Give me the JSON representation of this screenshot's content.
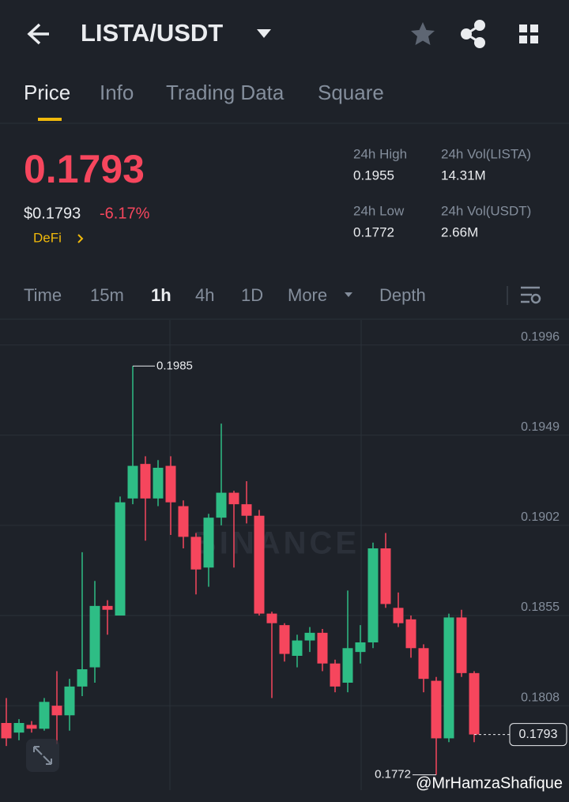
{
  "header": {
    "title": "LISTA/USDT"
  },
  "tabs": [
    "Price",
    "Info",
    "Trading Data",
    "Square"
  ],
  "price": {
    "last": "0.1793",
    "usd": "$0.1793",
    "change": "-6.17%",
    "tag": "DeFi"
  },
  "stats": [
    {
      "label": "24h High",
      "value": "0.1955"
    },
    {
      "label": "24h Vol(LISTA)",
      "value": "14.31M"
    },
    {
      "label": "24h Low",
      "value": "0.1772"
    },
    {
      "label": "24h Vol(USDT)",
      "value": "2.66M"
    }
  ],
  "timeframes": [
    "Time",
    "15m",
    "1h",
    "4h",
    "1D",
    "More",
    "Depth"
  ],
  "chart": {
    "type": "candlestick",
    "watermark": "BINANCE",
    "ylim": [
      0.1764,
      0.2009
    ],
    "yticks": [
      0.1996,
      0.1949,
      0.1902,
      0.1855,
      0.1808
    ],
    "grid": true,
    "up_color": "#2ebd85",
    "down_color": "#f6465d",
    "open": [
      0.1799,
      0.1794,
      0.1798,
      0.1796,
      0.1808,
      0.1803,
      0.1818,
      0.1828,
      0.186,
      0.1855,
      0.1916,
      0.1934,
      0.1916,
      0.1933,
      0.1912,
      0.1896,
      0.188,
      0.1906,
      0.1919,
      0.1913,
      0.1907,
      0.1856,
      0.185,
      0.1834,
      0.1842,
      0.1846,
      0.183,
      0.182,
      0.1836,
      0.1841,
      0.189,
      0.1859,
      0.1853,
      0.1838,
      0.1821,
      0.1791,
      0.1854,
      0.1825
    ],
    "high": [
      0.1812,
      0.1801,
      0.18,
      0.1812,
      0.1826,
      0.1822,
      0.1888,
      0.1873,
      0.1863,
      0.1917,
      0.1985,
      0.1938,
      0.1936,
      0.1938,
      0.1915,
      0.1898,
      0.1908,
      0.1955,
      0.192,
      0.1925,
      0.191,
      0.1857,
      0.1851,
      0.1845,
      0.1849,
      0.1848,
      0.1832,
      0.1868,
      0.185,
      0.1893,
      0.1898,
      0.1867,
      0.1855,
      0.184,
      0.1823,
      0.1856,
      0.1858,
      0.1826
    ],
    "low": [
      0.1787,
      0.179,
      0.1794,
      0.1795,
      0.1788,
      0.1795,
      0.1813,
      0.182,
      0.1845,
      0.1855,
      0.1913,
      0.1894,
      0.1912,
      0.1897,
      0.189,
      0.1866,
      0.187,
      0.1902,
      0.188,
      0.1903,
      0.1855,
      0.1812,
      0.1831,
      0.1828,
      0.1836,
      0.1826,
      0.1815,
      0.1815,
      0.183,
      0.1838,
      0.1859,
      0.1849,
      0.1833,
      0.1815,
      0.1772,
      0.1789,
      0.1823,
      0.1789
    ],
    "close": [
      0.1791,
      0.1799,
      0.1796,
      0.181,
      0.1803,
      0.1818,
      0.1827,
      0.186,
      0.1858,
      0.1914,
      0.1933,
      0.1916,
      0.1932,
      0.1914,
      0.1896,
      0.1879,
      0.1906,
      0.1919,
      0.1913,
      0.1907,
      0.1856,
      0.1851,
      0.1835,
      0.1842,
      0.1846,
      0.183,
      0.1818,
      0.1838,
      0.1841,
      0.189,
      0.1861,
      0.1851,
      0.1838,
      0.1822,
      0.1791,
      0.1854,
      0.1825,
      0.1793
    ],
    "high_label": 0.1985,
    "low_label": 0.1772,
    "last_label": 0.1793
  },
  "credit": "@MrHamzaShafique"
}
